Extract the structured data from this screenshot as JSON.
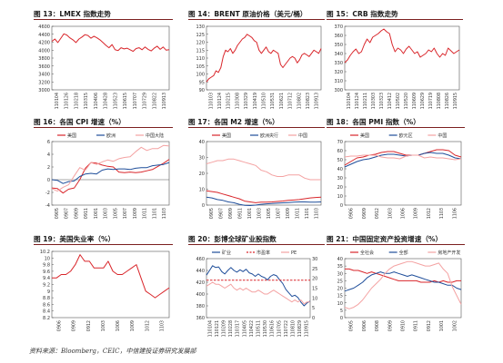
{
  "source_note": "资料来源：Bloomberg，CEIC，中信建投证券研究发展部",
  "chart_data": [
    {
      "id": "p13",
      "type": "line",
      "title": "图 13：LMEX 指数走势",
      "ylim": [
        3000,
        4600
      ],
      "yticks": [
        "4600",
        "4400",
        "4200",
        "4000",
        "3800",
        "3600",
        "3400",
        "3200",
        "3000"
      ],
      "xticks": [
        "110104",
        "110126",
        "110218",
        "110315",
        "110406",
        "110428",
        "110523",
        "110615",
        "110707",
        "110729",
        "110822",
        "110913"
      ],
      "series": [
        {
          "color": "#d9262b",
          "values": [
            4220,
            4280,
            4190,
            4300,
            4410,
            4380,
            4310,
            4260,
            4190,
            4280,
            4330,
            4390,
            4370,
            4300,
            4350,
            4310,
            4260,
            4190,
            4120,
            4060,
            4140,
            4010,
            3990,
            4060,
            4030,
            4050,
            4010,
            3970,
            4040,
            4060,
            4010,
            4080,
            4020,
            3980,
            4050,
            4100,
            4020,
            4080,
            4000,
            4010
          ]
        }
      ]
    },
    {
      "id": "p14",
      "type": "line",
      "title": "图 14：BRENT 原油价格（美元/桶）",
      "ylim": [
        90,
        130
      ],
      "yticks": [
        "130",
        "125",
        "120",
        "115",
        "110",
        "105",
        "100",
        "95",
        "90"
      ],
      "xticks": [
        "110103",
        "110124",
        "110215",
        "110308",
        "110329",
        "110419",
        "110510",
        "110531",
        "110621",
        "110712",
        "110802",
        "110823",
        "110913"
      ],
      "series": [
        {
          "color": "#d9262b",
          "values": [
            95,
            97,
            98,
            99,
            102,
            101,
            104,
            111,
            115,
            114,
            116,
            113,
            115,
            118,
            120,
            122,
            123,
            125,
            124,
            123,
            121,
            120,
            115,
            113,
            115,
            117,
            114,
            113,
            115,
            114,
            113,
            106,
            104,
            106,
            108,
            110,
            111,
            110,
            107,
            109,
            112,
            113,
            112,
            111,
            113,
            115,
            114,
            113,
            116
          ]
        }
      ]
    },
    {
      "id": "p15",
      "type": "line",
      "title": "图 15：CRB 指数走势",
      "ylim": [
        300,
        370
      ],
      "yticks": [
        "370",
        "360",
        "350",
        "340",
        "330",
        "320",
        "310",
        "300"
      ],
      "xticks": [
        "110104",
        "110124",
        "110211",
        "110303",
        "110323",
        "110412",
        "110502",
        "110520",
        "110609",
        "110629",
        "110719",
        "110808",
        "110826",
        "110915"
      ],
      "series": [
        {
          "color": "#d9262b",
          "values": [
            330,
            333,
            338,
            342,
            345,
            340,
            342,
            350,
            356,
            352,
            358,
            360,
            362,
            365,
            367,
            364,
            362,
            350,
            342,
            346,
            344,
            340,
            345,
            348,
            344,
            340,
            342,
            336,
            338,
            340,
            344,
            342,
            346,
            340,
            336,
            340,
            338,
            346,
            343,
            340,
            342,
            344
          ]
        }
      ]
    },
    {
      "id": "p16",
      "type": "line",
      "title": "图 16：各国 CPI 增速（%）",
      "ylim": [
        -4,
        6
      ],
      "yticks": [
        "6",
        "4",
        "2",
        "0",
        "-2",
        "-4"
      ],
      "xticks": [
        "0905",
        "0907",
        "0909",
        "0911",
        "1001",
        "1003",
        "1005",
        "1007",
        "1009",
        "1011",
        "1101",
        "1103"
      ],
      "legend": "top",
      "series": [
        {
          "name": "美国",
          "color": "#d9262b",
          "values": [
            -1.3,
            -1.4,
            -2.1,
            -1.5,
            -1.3,
            0.0,
            1.8,
            2.7,
            2.6,
            2.3,
            2.1,
            2.0,
            1.2,
            1.1,
            1.2,
            1.1,
            1.2,
            1.4,
            1.6,
            2.1,
            2.6,
            3.2
          ]
        },
        {
          "name": "欧洲",
          "color": "#1f4e9a",
          "values": [
            0.0,
            -0.1,
            -0.6,
            -0.3,
            -0.2,
            0.5,
            0.9,
            1.0,
            0.9,
            1.5,
            1.7,
            1.6,
            1.7,
            1.7,
            1.6,
            1.8,
            1.9,
            1.9,
            2.2,
            2.3,
            2.4,
            2.7
          ]
        },
        {
          "name": "中国大陆",
          "color": "#f4a2a2",
          "values": [
            -1.4,
            -1.8,
            -1.2,
            -0.8,
            0.6,
            1.9,
            1.5,
            2.7,
            2.4,
            2.8,
            3.1,
            2.9,
            3.3,
            3.5,
            3.6,
            4.4,
            5.1,
            4.6,
            4.9,
            4.9,
            5.4,
            5.3
          ]
        }
      ]
    },
    {
      "id": "p17",
      "type": "line",
      "title": "图 17：各国 M2 增速（%）",
      "ylim": [
        0,
        40
      ],
      "yticks": [
        "40",
        "30",
        "20",
        "10",
        "0"
      ],
      "xticks": [
        "0905",
        "0907",
        "0909",
        "0911",
        "1001",
        "1003",
        "1005",
        "1007",
        "1009",
        "1011",
        "1101",
        "1103"
      ],
      "legend": "top",
      "series": [
        {
          "name": "美国",
          "color": "#d9262b",
          "values": [
            9.0,
            8.5,
            8.0,
            7.0,
            6.0,
            5.0,
            4.0,
            2.5,
            2.0,
            1.5,
            1.8,
            1.9,
            2.0,
            2.3,
            2.6,
            3.0,
            3.2,
            3.5,
            4.0,
            4.5,
            4.8,
            5.0
          ]
        },
        {
          "name": "欧洲央行",
          "color": "#1f4e9a",
          "values": [
            5.0,
            4.5,
            3.5,
            3.0,
            2.0,
            1.5,
            0.5,
            -0.2,
            -0.3,
            0.0,
            0.5,
            0.8,
            1.0,
            1.2,
            1.4,
            1.6,
            1.8,
            2.0,
            2.0,
            1.9,
            1.8,
            2.0
          ]
        },
        {
          "name": "中国",
          "color": "#f4a2a2",
          "values": [
            26,
            27,
            28,
            28,
            29,
            29,
            28,
            27,
            26,
            25,
            22,
            21,
            19,
            18,
            18,
            19,
            19,
            19,
            17,
            16,
            16,
            16
          ]
        }
      ]
    },
    {
      "id": "p18",
      "type": "line",
      "title": "图 18：各国 PMI 指数（%）",
      "ylim": [
        0,
        70
      ],
      "yticks": [
        "70",
        "60",
        "50",
        "40",
        "30",
        "20",
        "10",
        "0"
      ],
      "xticks": [
        "0906",
        "0909",
        "0912",
        "1003",
        "1006",
        "1009",
        "1012",
        "1103",
        "1106"
      ],
      "legend": "top",
      "series": [
        {
          "name": "美国",
          "color": "#d9262b",
          "values": [
            44,
            48,
            52,
            53,
            55,
            56,
            58,
            59,
            59,
            57,
            55,
            55,
            55,
            57,
            59,
            61,
            61,
            60,
            55,
            53
          ]
        },
        {
          "name": "欧元区",
          "color": "#1f4e9a",
          "values": [
            42,
            45,
            48,
            50,
            51,
            53,
            55,
            56,
            56,
            55,
            54,
            55,
            55,
            57,
            58,
            57,
            57,
            55,
            52,
            51
          ]
        },
        {
          "name": "中国",
          "color": "#f4a2a2",
          "values": [
            53,
            54,
            54,
            55,
            55,
            55,
            53,
            52,
            52,
            51,
            54,
            55,
            55,
            52,
            53,
            52,
            52,
            51,
            50,
            51
          ]
        }
      ]
    },
    {
      "id": "p19",
      "type": "line",
      "title": "图 19：美国失业率（%）",
      "ylim": [
        8.2,
        10.2
      ],
      "yticks": [
        "10.2",
        "10",
        "9.8",
        "9.6",
        "9.4",
        "9.2",
        "9",
        "8.8",
        "8.6",
        "8.4",
        "8.2"
      ],
      "xticks": [
        "0906",
        "0909",
        "0912",
        "1003",
        "1006",
        "1009",
        "1012",
        "1103"
      ],
      "series": [
        {
          "name": "美国失业率",
          "color": "#d9262b",
          "values": [
            9.4,
            9.4,
            9.5,
            9.5,
            9.6,
            9.8,
            10.1,
            9.9,
            9.9,
            9.7,
            9.7,
            9.7,
            9.9,
            9.6,
            9.5,
            9.5,
            9.6,
            9.7,
            9.8,
            9.4,
            9.0,
            8.9,
            8.8,
            8.9,
            9.0,
            9.1
          ]
        }
      ]
    },
    {
      "id": "p20",
      "type": "line",
      "title": "图 20：彭博全球矿业股指数",
      "ylim": [
        360,
        460
      ],
      "yticks": [
        "460",
        "440",
        "420",
        "400",
        "380",
        "360"
      ],
      "y2lim": [
        0,
        30
      ],
      "y2ticks": [
        "30",
        "25",
        "20",
        "15",
        "10",
        "5",
        "0"
      ],
      "xticks": [
        "110104",
        "110121",
        "110209",
        "110228",
        "110317",
        "110405",
        "110422",
        "110511",
        "110530",
        "110616",
        "110705",
        "110722",
        "110810",
        "110829",
        "110915"
      ],
      "legend": "top",
      "series": [
        {
          "name": "矿业",
          "color": "#1f4e9a",
          "axis": "left",
          "values": [
            432,
            440,
            448,
            445,
            446,
            438,
            434,
            440,
            445,
            440,
            437,
            441,
            438,
            442,
            436,
            434,
            430,
            434,
            430,
            428,
            424,
            430,
            433,
            431,
            424,
            418,
            408,
            402,
            396,
            398,
            394,
            386,
            380,
            385,
            388
          ]
        },
        {
          "name": "市盈率",
          "color": "#d9262b",
          "dashed": true,
          "axis": "right",
          "values": [
            19,
            19,
            19,
            19,
            19,
            19,
            19,
            19,
            19,
            19,
            19,
            19,
            19,
            19,
            19,
            19,
            19,
            19,
            19,
            19,
            19,
            19,
            19,
            19,
            19,
            19,
            19,
            19,
            19,
            19,
            19,
            19,
            19,
            19,
            19
          ]
        },
        {
          "name": "PE",
          "color": "#f4a2a2",
          "axis": "right",
          "values": [
            16,
            17,
            18,
            17,
            17,
            16,
            15,
            16,
            17,
            15,
            14,
            15,
            14,
            15,
            14,
            13,
            13,
            14,
            13,
            12,
            12,
            13,
            14,
            13,
            12,
            11,
            10,
            9,
            8,
            9,
            8,
            9,
            7,
            8,
            8
          ]
        }
      ]
    },
    {
      "id": "p21",
      "type": "line",
      "title": "图 21：中国固定资产投资增速（%）",
      "ylim": [
        0,
        40
      ],
      "yticks": [
        "40",
        "35",
        "30",
        "25",
        "20",
        "15",
        "10",
        "5",
        "0"
      ],
      "xticks": [
        "0905",
        "0906",
        "0908",
        "0909",
        "0910",
        "0911",
        "0912",
        "1001",
        "1002"
      ],
      "legend": "top",
      "series": [
        {
          "name": "全社会",
          "color": "#d9262b",
          "values": [
            33,
            33,
            32,
            32,
            31,
            30,
            31,
            30,
            29,
            28,
            27,
            26,
            25,
            25,
            25,
            25,
            25,
            24,
            24,
            24,
            25,
            24,
            25,
            24,
            24,
            25,
            25
          ]
        },
        {
          "name": "全部",
          "color": "#1f4e9a",
          "values": [
            18,
            19,
            20,
            22,
            24,
            27,
            29,
            30,
            31,
            30,
            30,
            31,
            30,
            29,
            28,
            29,
            28,
            27,
            26,
            25,
            24,
            24,
            23,
            22,
            22,
            20,
            19
          ]
        },
        {
          "name": "房地产开发",
          "color": "#f4a2a2",
          "values": [
            7,
            6,
            7,
            9,
            12,
            16,
            20,
            23,
            26,
            30,
            33,
            35,
            36,
            37,
            38,
            38,
            37,
            36,
            35,
            35,
            36,
            37,
            33,
            30,
            21,
            15,
            9
          ]
        }
      ]
    }
  ]
}
